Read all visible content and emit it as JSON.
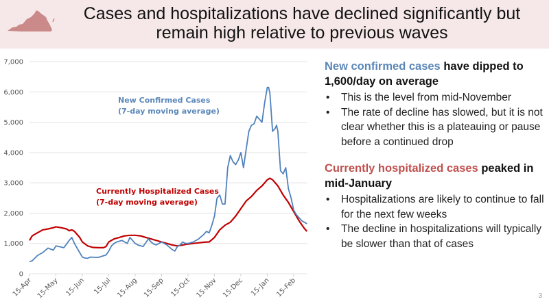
{
  "header": {
    "title_line1": "Cases and hospitalizations have declined significantly but",
    "title_line2": "remain high relative to previous waves",
    "logo_icon": "virginia-state-icon",
    "logo_color": "#c98a89",
    "background": "#f6e8e9"
  },
  "right_panel": {
    "section1": {
      "highlight": "New confirmed cases",
      "headline_rest": " have dipped to 1,600/day on average",
      "bullets": [
        "This is the level from mid-November",
        "The rate of decline has slowed, but it is not clear whether this is a plateauing or pause before a continued drop"
      ]
    },
    "section2": {
      "highlight": "Currently hospitalized cases",
      "headline_rest": " peaked in mid-January",
      "bullets": [
        "Hospitalizations are likely to continue to fall for the next few weeks",
        "The decline in hospitalizations will typically be slower than that of cases"
      ]
    }
  },
  "page_number": "3",
  "chart_data": {
    "type": "line",
    "title": "",
    "xlabel": "",
    "ylabel": "",
    "ylim": [
      0,
      7000
    ],
    "yticks": [
      0,
      1000,
      2000,
      3000,
      4000,
      5000,
      6000,
      7000
    ],
    "ytick_labels": [
      "0",
      "1,000",
      "2,000",
      "3,000",
      "4,000",
      "5,000",
      "6,000",
      "7,000"
    ],
    "xtick_labels": [
      "15-Apr",
      "15-May",
      "15-Jun",
      "15-Jul",
      "15-Aug",
      "15-Sep",
      "15-Oct",
      "15-Nov",
      "15-Dec",
      "15-Jan",
      "15-Feb"
    ],
    "x_unit": "months since 15-Apr",
    "xlim": [
      0,
      10.5
    ],
    "grid": true,
    "series": [
      {
        "name": "New Confirmed Cases (7-day moving average)",
        "label_line1": "New Confirmed  Cases",
        "label_line2": "(7-day moving average)",
        "color": "#4f81bd",
        "x": [
          0,
          0.1,
          0.3,
          0.5,
          0.7,
          0.9,
          1.0,
          1.1,
          1.3,
          1.5,
          1.6,
          1.7,
          1.8,
          1.9,
          2.0,
          2.1,
          2.2,
          2.3,
          2.6,
          2.9,
          3.0,
          3.1,
          3.2,
          3.3,
          3.5,
          3.7,
          3.8,
          3.9,
          4.0,
          4.1,
          4.3,
          4.5,
          4.6,
          4.7,
          4.8,
          4.9,
          5.0,
          5.2,
          5.4,
          5.5,
          5.6,
          5.7,
          5.8,
          5.9,
          6.0,
          6.2,
          6.4,
          6.6,
          6.7,
          6.8,
          6.9,
          7.0,
          7.1,
          7.2,
          7.3,
          7.4,
          7.5,
          7.6,
          7.7,
          7.8,
          7.9,
          8.0,
          8.1,
          8.2,
          8.3,
          8.4,
          8.5,
          8.6,
          8.7,
          8.8,
          8.9,
          9.0,
          9.05,
          9.1,
          9.2,
          9.3,
          9.35,
          9.4,
          9.5,
          9.6,
          9.7,
          9.8,
          9.9,
          10.0,
          10.1,
          10.2,
          10.3,
          10.4,
          10.5
        ],
        "values": [
          400,
          430,
          600,
          700,
          850,
          780,
          920,
          900,
          860,
          1100,
          1200,
          1000,
          850,
          700,
          550,
          520,
          510,
          550,
          540,
          620,
          750,
          920,
          1000,
          1050,
          1100,
          1000,
          1200,
          1100,
          1000,
          950,
          900,
          1150,
          1050,
          980,
          950,
          1000,
          1050,
          950,
          800,
          750,
          900,
          950,
          1050,
          1000,
          1000,
          1050,
          1150,
          1300,
          1400,
          1350,
          1600,
          1900,
          2500,
          2600,
          2300,
          2300,
          3500,
          3900,
          3700,
          3600,
          3750,
          4000,
          3500,
          4100,
          4700,
          4900,
          4950,
          5200,
          5100,
          5000,
          5650,
          6150,
          6150,
          5950,
          4700,
          4800,
          4900,
          4700,
          3400,
          3300,
          3500,
          2800,
          2500,
          2100,
          1950,
          1850,
          1750,
          1700,
          1650
        ]
      },
      {
        "name": "Currently Hospitalized Cases (7-day moving average)",
        "label_line1": "Currently  Hospitalized  Cases",
        "label_line2": "(7-day moving average)",
        "color": "#c00000",
        "x": [
          0,
          0.1,
          0.3,
          0.5,
          0.7,
          0.9,
          1.0,
          1.2,
          1.4,
          1.5,
          1.6,
          1.7,
          1.9,
          2.0,
          2.2,
          2.4,
          2.6,
          2.8,
          2.9,
          3.0,
          3.2,
          3.4,
          3.6,
          3.8,
          4.0,
          4.2,
          4.4,
          4.6,
          4.8,
          5.0,
          5.2,
          5.4,
          5.6,
          5.8,
          6.0,
          6.2,
          6.4,
          6.6,
          6.8,
          7.0,
          7.2,
          7.4,
          7.6,
          7.8,
          8.0,
          8.2,
          8.4,
          8.6,
          8.8,
          9.0,
          9.1,
          9.2,
          9.4,
          9.6,
          9.8,
          10.0,
          10.2,
          10.4,
          10.5
        ],
        "values": [
          1100,
          1250,
          1350,
          1450,
          1480,
          1520,
          1550,
          1520,
          1480,
          1420,
          1450,
          1400,
          1200,
          1050,
          920,
          870,
          860,
          860,
          900,
          1050,
          1150,
          1200,
          1250,
          1270,
          1270,
          1250,
          1200,
          1150,
          1100,
          1050,
          1000,
          950,
          920,
          950,
          980,
          1000,
          1020,
          1040,
          1050,
          1200,
          1450,
          1600,
          1700,
          1900,
          2150,
          2400,
          2550,
          2750,
          2900,
          3100,
          3150,
          3100,
          2900,
          2600,
          2350,
          2050,
          1750,
          1500,
          1400
        ]
      }
    ]
  }
}
